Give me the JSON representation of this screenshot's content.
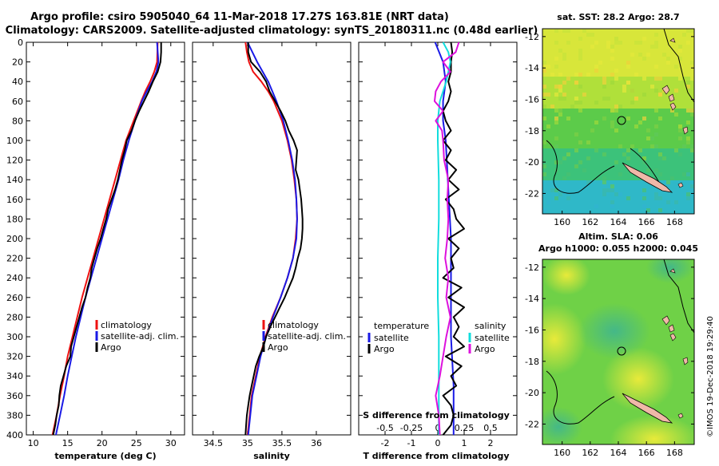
{
  "header": {
    "line1": "Argo profile: csiro 5905040_64 11-Mar-2018 17.27S 163.81E (NRT data)",
    "line2": "Climatology: CARS2009. Satellite-adjusted climatology: synTS_20180311.nc (0.48d earlier)"
  },
  "colors": {
    "climatology": "#ee1111",
    "satellite": "#1a1ae6",
    "argo": "#000000",
    "s_diff": "#dd11dd",
    "sat_s_diff": "#11dddd"
  },
  "depth_axis": {
    "ticks": [
      "0",
      "20",
      "40",
      "60",
      "80",
      "100",
      "120",
      "140",
      "160",
      "180",
      "200",
      "220",
      "240",
      "260",
      "280",
      "300",
      "320",
      "340",
      "360",
      "380",
      "400"
    ]
  },
  "chart_data": [
    {
      "type": "line",
      "xlabel": "temperature (deg C)",
      "ylabel": "depth",
      "xlim": [
        9,
        32
      ],
      "ylim": [
        400,
        0
      ],
      "xticks": [
        "10",
        "15",
        "20",
        "25",
        "30"
      ],
      "legend_position": "lower-center",
      "legend": [
        "climatology",
        "satellite-adj. clim.",
        "Argo"
      ],
      "series": [
        {
          "name": "climatology",
          "color_key": "climatology",
          "depth": [
            0,
            20,
            30,
            40,
            50,
            60,
            80,
            100,
            120,
            140,
            160,
            180,
            200,
            220,
            240,
            260,
            280,
            300,
            320,
            340,
            360,
            380,
            400
          ],
          "values": [
            28.1,
            28.0,
            27.6,
            27.0,
            26.3,
            25.7,
            24.6,
            23.5,
            22.7,
            21.9,
            21.1,
            20.3,
            19.5,
            18.7,
            17.9,
            17.1,
            16.4,
            15.7,
            15.0,
            14.5,
            13.9,
            13.4,
            12.8
          ]
        },
        {
          "name": "satellite-adj. clim.",
          "color_key": "satellite",
          "depth": [
            0,
            20,
            30,
            40,
            50,
            60,
            80,
            100,
            120,
            140,
            160,
            180,
            200,
            220,
            240,
            260,
            280,
            300,
            320,
            340,
            360,
            380,
            400
          ],
          "values": [
            28.0,
            28.2,
            27.9,
            27.3,
            26.5,
            25.8,
            24.8,
            23.9,
            23.1,
            22.4,
            21.6,
            20.8,
            20.0,
            19.2,
            18.4,
            17.6,
            16.9,
            16.2,
            15.6,
            15.0,
            14.5,
            13.9,
            13.3
          ]
        },
        {
          "name": "Argo",
          "color_key": "argo",
          "depth": [
            0,
            10,
            20,
            30,
            40,
            50,
            60,
            70,
            80,
            90,
            100,
            110,
            120,
            130,
            140,
            150,
            160,
            170,
            180,
            190,
            200,
            210,
            220,
            230,
            240,
            250,
            260,
            270,
            280,
            290,
            300,
            310,
            320,
            330,
            340,
            350,
            360,
            370,
            380,
            390,
            400
          ],
          "values": [
            28.6,
            28.6,
            28.5,
            28.1,
            27.4,
            26.8,
            26.1,
            25.4,
            24.8,
            24.3,
            23.6,
            23.3,
            22.9,
            22.6,
            22.3,
            21.9,
            21.4,
            20.9,
            20.6,
            20.2,
            19.8,
            19.3,
            18.9,
            18.5,
            18.3,
            17.9,
            17.6,
            17.1,
            16.7,
            16.3,
            15.9,
            15.5,
            15.4,
            14.8,
            14.4,
            14.0,
            13.8,
            13.7,
            13.4,
            13.2,
            12.9
          ]
        }
      ]
    },
    {
      "type": "line",
      "xlabel": "salinity",
      "ylabel": "depth",
      "xlim": [
        34.2,
        36.5
      ],
      "ylim": [
        400,
        0
      ],
      "xticks": [
        "34.5",
        "35",
        "35.5",
        "36"
      ],
      "legend_position": "lower-center",
      "legend": [
        "climatology",
        "satellite-adj. clim.",
        "Argo"
      ],
      "series": [
        {
          "name": "climatology",
          "color_key": "climatology",
          "depth": [
            0,
            10,
            20,
            30,
            40,
            50,
            60,
            80,
            100,
            120,
            140,
            160,
            180,
            200,
            220,
            240,
            260,
            280,
            300,
            320,
            340,
            360,
            380,
            400
          ],
          "values": [
            34.97,
            34.99,
            35.02,
            35.08,
            35.2,
            35.3,
            35.38,
            35.5,
            35.58,
            35.64,
            35.68,
            35.71,
            35.72,
            35.7,
            35.66,
            35.58,
            35.48,
            35.36,
            35.26,
            35.18,
            35.12,
            35.06,
            35.03,
            35.0
          ]
        },
        {
          "name": "satellite-adj. clim.",
          "color_key": "satellite",
          "depth": [
            0,
            10,
            20,
            30,
            40,
            50,
            60,
            80,
            100,
            120,
            140,
            160,
            180,
            200,
            220,
            240,
            260,
            280,
            300,
            320,
            340,
            360,
            380,
            400
          ],
          "values": [
            35.0,
            35.07,
            35.14,
            35.22,
            35.3,
            35.36,
            35.42,
            35.52,
            35.59,
            35.65,
            35.69,
            35.71,
            35.72,
            35.71,
            35.66,
            35.58,
            35.48,
            35.37,
            35.27,
            35.19,
            35.13,
            35.07,
            35.04,
            35.01
          ]
        },
        {
          "name": "Argo",
          "color_key": "argo",
          "depth": [
            0,
            10,
            20,
            30,
            40,
            50,
            60,
            70,
            80,
            90,
            100,
            110,
            120,
            130,
            140,
            150,
            160,
            170,
            180,
            190,
            200,
            210,
            220,
            230,
            240,
            250,
            260,
            270,
            280,
            290,
            300,
            310,
            320,
            330,
            340,
            350,
            360,
            370,
            380,
            390,
            400
          ],
          "values": [
            35.01,
            35.01,
            35.05,
            35.18,
            35.27,
            35.32,
            35.4,
            35.48,
            35.55,
            35.6,
            35.67,
            35.72,
            35.71,
            35.7,
            35.74,
            35.76,
            35.78,
            35.79,
            35.8,
            35.8,
            35.79,
            35.77,
            35.73,
            35.7,
            35.66,
            35.6,
            35.54,
            35.47,
            35.4,
            35.33,
            35.27,
            35.23,
            35.17,
            35.12,
            35.09,
            35.06,
            35.03,
            35.01,
            34.99,
            34.98,
            34.97
          ]
        }
      ]
    },
    {
      "type": "line",
      "xlabel": "T difference from climatology",
      "x2label": "S difference from climatology",
      "ylabel": "depth",
      "xlim": [
        -3,
        3
      ],
      "x2lim": [
        -0.75,
        0.75
      ],
      "ylim": [
        400,
        0
      ],
      "xticks": [
        "-2",
        "-1",
        "0",
        "1",
        "2"
      ],
      "x2ticks": [
        "-0.5",
        "-0.25",
        "0",
        "0.25",
        "0.5"
      ],
      "legend_position": "lower-center",
      "legend_temperature_title": "temperature",
      "legend_salinity_title": "salinity",
      "legend_temperature": [
        "satellite",
        "Argo"
      ],
      "legend_salinity": [
        "satellite",
        "Argo"
      ],
      "series": [
        {
          "name": "T satellite",
          "axis": "T",
          "color_key": "satellite",
          "depth": [
            0,
            20,
            40,
            60,
            80,
            100,
            150,
            200,
            250,
            300,
            350,
            400
          ],
          "values": [
            -0.1,
            0.2,
            0.3,
            0.2,
            0.2,
            0.3,
            0.4,
            0.5,
            0.5,
            0.5,
            0.6,
            0.6
          ]
        },
        {
          "name": "T Argo",
          "axis": "T",
          "color_key": "argo",
          "depth": [
            0,
            10,
            20,
            30,
            40,
            50,
            60,
            70,
            80,
            90,
            100,
            110,
            120,
            130,
            140,
            150,
            160,
            170,
            180,
            190,
            200,
            210,
            220,
            230,
            240,
            250,
            260,
            270,
            280,
            290,
            300,
            310,
            320,
            330,
            340,
            350,
            360,
            370,
            380,
            390,
            400
          ],
          "values": [
            0.5,
            0.55,
            0.5,
            0.5,
            0.4,
            0.5,
            0.4,
            0.2,
            0.3,
            0.5,
            0.2,
            0.5,
            0.3,
            0.7,
            0.4,
            0.8,
            0.3,
            0.6,
            0.7,
            1.0,
            0.4,
            0.8,
            0.5,
            0.6,
            0.2,
            0.9,
            0.4,
            1.0,
            0.6,
            0.8,
            0.6,
            1.0,
            0.3,
            0.9,
            0.5,
            0.7,
            0.2,
            0.5,
            0.6,
            0.5,
            0.2
          ]
        },
        {
          "name": "S satellite",
          "axis": "S",
          "color_key": "sat_s_diff",
          "depth": [
            0,
            10,
            20,
            30,
            40,
            50,
            60,
            70,
            80,
            100,
            140,
            180,
            220,
            260,
            300,
            340,
            380,
            400
          ],
          "values": [
            0.05,
            0.1,
            0.12,
            0.1,
            0.08,
            0.05,
            0.02,
            0.01,
            0.0,
            0.0,
            0.01,
            0.01,
            0.0,
            0.0,
            0.01,
            0.01,
            0.01,
            0.01
          ]
        },
        {
          "name": "S Argo",
          "axis": "S",
          "color_key": "s_diff",
          "depth": [
            0,
            10,
            20,
            30,
            40,
            50,
            60,
            70,
            80,
            90,
            100,
            120,
            140,
            160,
            180,
            200,
            220,
            240,
            260,
            280,
            300,
            320,
            340,
            360,
            380,
            400
          ],
          "values": [
            0.2,
            0.17,
            0.05,
            0.12,
            0.03,
            -0.02,
            -0.03,
            0.05,
            -0.02,
            0.04,
            0.05,
            0.06,
            0.1,
            0.09,
            0.1,
            0.09,
            0.07,
            0.1,
            0.08,
            0.12,
            0.08,
            0.05,
            0.02,
            -0.02,
            0.01,
            0.02
          ]
        }
      ]
    }
  ],
  "maps": {
    "sst": {
      "title": "sat. SST: 28.2 Argo: 28.7",
      "lat_ticks": [
        "-12",
        "-14",
        "-16",
        "-18",
        "-20",
        "-22"
      ],
      "lon_ticks": [
        "160",
        "162",
        "164",
        "166",
        "168"
      ]
    },
    "sla": {
      "title1": "Altim. SLA: 0.06",
      "title2": "Argo h1000: 0.055 h2000: 0.045",
      "lat_ticks": [
        "-12",
        "-14",
        "-16",
        "-18",
        "-20",
        "-22"
      ],
      "lon_ticks": [
        "160",
        "162",
        "164",
        "166",
        "168"
      ]
    }
  },
  "footer": {
    "stamp": "©IMOS 19-Dec-2018 19:29:40"
  }
}
